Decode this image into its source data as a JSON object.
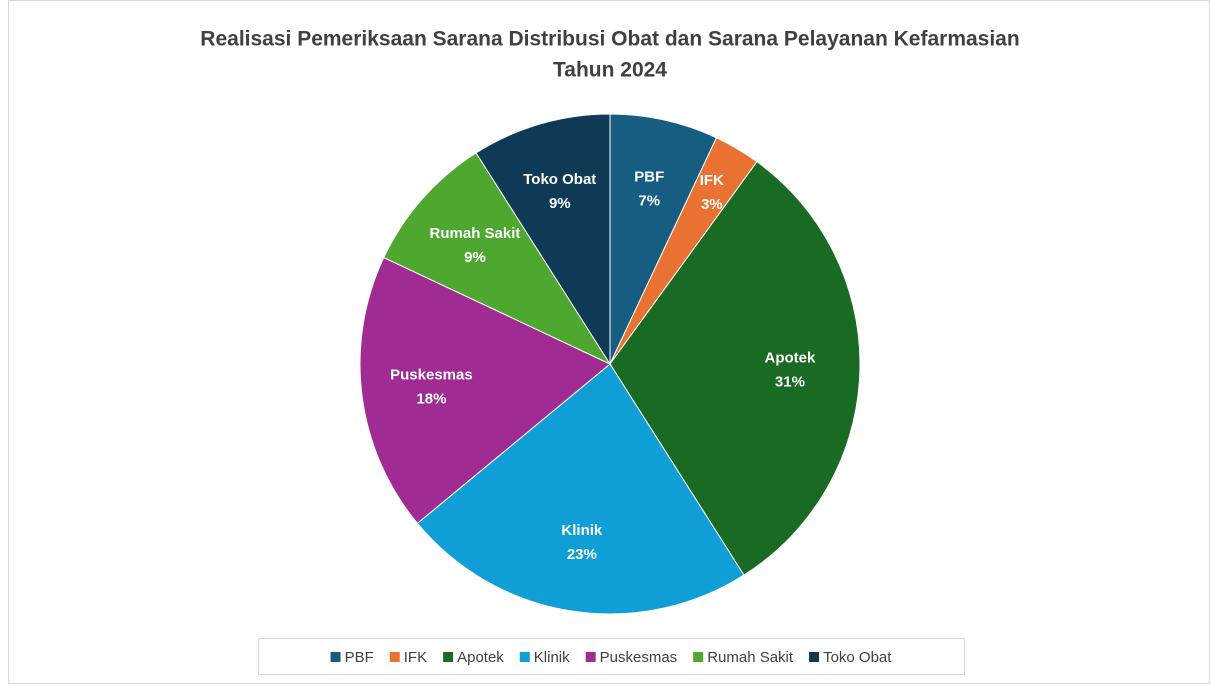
{
  "chart_data": {
    "type": "pie",
    "title": "Realisasi Pemeriksaan Sarana Distribusi Obat dan Sarana Pelayanan Kefarmasian",
    "subtitle": "Tahun 2024",
    "categories": [
      "PBF",
      "IFK",
      "Apotek",
      "Klinik",
      "Puskesmas",
      "Rumah Sakit",
      "Toko Obat"
    ],
    "values": [
      7,
      3,
      31,
      23,
      18,
      9,
      9
    ],
    "value_labels": [
      "7%",
      "3%",
      "31%",
      "23%",
      "18%",
      "9%",
      "9%"
    ],
    "colors": [
      "#175d82",
      "#e97132",
      "#196b24",
      "#0f9ed5",
      "#a02b93",
      "#4ea72e",
      "#0e3a55"
    ],
    "legend": "bottom"
  }
}
